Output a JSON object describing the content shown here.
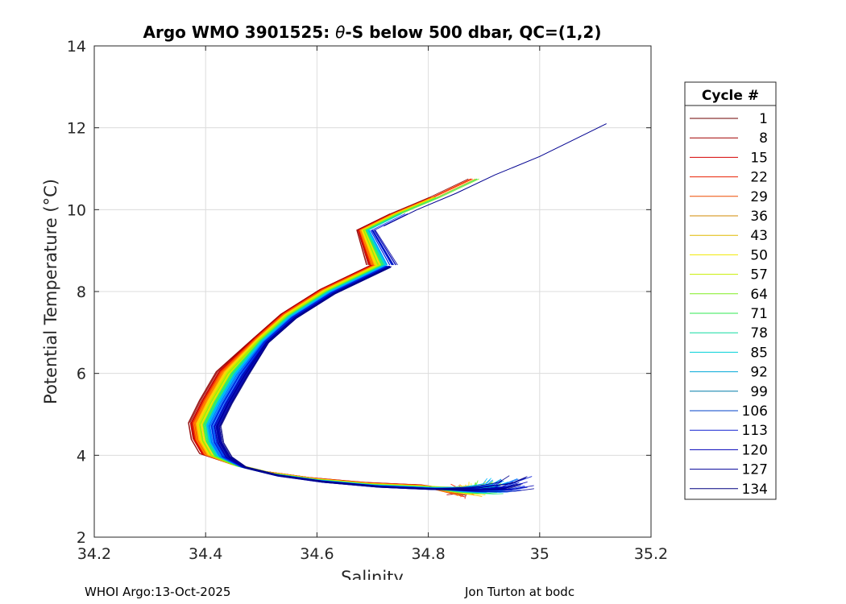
{
  "chart_data": {
    "type": "line",
    "title": {
      "prefix": "Argo WMO 3901525: ",
      "theta": "θ",
      "suffix": "-S below 500 dbar,  QC=(1,2)"
    },
    "xlabel": "Salinity",
    "ylabel": "Potential Temperature (°C)",
    "xlim": [
      34.2,
      35.2
    ],
    "ylim": [
      2,
      14
    ],
    "xticks": [
      34.2,
      34.4,
      34.6,
      34.8,
      35,
      35.2
    ],
    "yticks": [
      2,
      4,
      6,
      8,
      10,
      12,
      14
    ],
    "xtick_labels": [
      "34.2",
      "34.4",
      "34.6",
      "34.8",
      "35",
      "35.2"
    ],
    "ytick_labels": [
      "2",
      "4",
      "6",
      "8",
      "10",
      "12",
      "14"
    ],
    "grid": true,
    "legend": {
      "title": "Cycle #",
      "placement": "outside-right",
      "entries": [
        "1",
        "8",
        "15",
        "22",
        "29",
        "36",
        "43",
        "50",
        "57",
        "64",
        "71",
        "78",
        "85",
        "92",
        "99",
        "106",
        "113",
        "120",
        "127",
        "134"
      ],
      "colors": [
        "#6e0000",
        "#a00000",
        "#d40000",
        "#e82000",
        "#ee4a00",
        "#d28800",
        "#e0b800",
        "#f0e800",
        "#c8ee00",
        "#80ee20",
        "#30e850",
        "#10dca0",
        "#00d0d8",
        "#00a8d8",
        "#007ca8",
        "#0040c8",
        "#1020d0",
        "#0000b8",
        "#000098",
        "#000080"
      ]
    },
    "series_note_color_ramp": [
      "#6e0000",
      "#d00000",
      "#ff3000",
      "#ff8c00",
      "#ffd000",
      "#f0f000",
      "#a0f000",
      "#40f040",
      "#00e0c0",
      "#00c8ff",
      "#0080ff",
      "#0030f0",
      "#0000c0",
      "#000080"
    ],
    "representative_path": {
      "s": [
        34.72,
        34.62,
        34.55,
        34.5,
        34.45,
        34.42,
        34.4,
        34.405,
        34.42,
        34.46,
        34.52,
        34.6,
        34.7,
        34.8,
        34.88,
        34.94,
        34.97
      ],
      "t": [
        8.65,
        8.0,
        7.4,
        6.8,
        6.0,
        5.3,
        4.75,
        4.35,
        4.0,
        3.75,
        3.55,
        3.4,
        3.28,
        3.22,
        3.2,
        3.25,
        3.35
      ]
    },
    "upper_path": {
      "s": [
        34.72,
        34.78,
        34.85,
        34.92,
        35.0,
        35.06,
        35.12
      ],
      "t": [
        9.6,
        10.0,
        10.4,
        10.85,
        11.3,
        11.7,
        12.1
      ]
    }
  },
  "footer": {
    "left": "WHOI Argo:13-Oct-2025",
    "right": "Jon Turton at bodc"
  }
}
